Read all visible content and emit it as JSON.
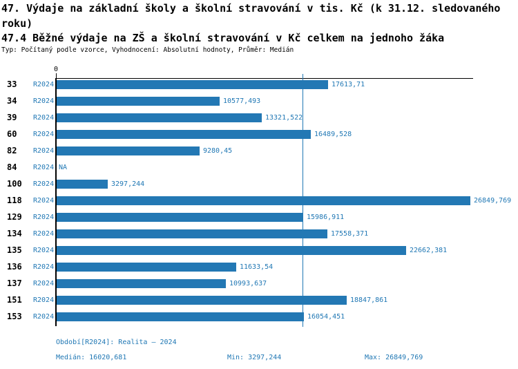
{
  "title": {
    "line1": "47. Výdaje na základní školy a školní stravování v tis. Kč (k 31.12. sledovaného",
    "line2": "roku)",
    "subtitle": "47.4 Běžné výdaje na ZŠ a školní stravování v Kč celkem na jednoho žáka",
    "meta": "Typ: Počítaný podle vzorce, Vyhodnocení: Absolutní hodnoty, Průměr: Medián"
  },
  "chart_data": {
    "type": "bar",
    "orientation": "horizontal",
    "period_label": "R2024",
    "categories": [
      "33",
      "34",
      "39",
      "60",
      "82",
      "84",
      "100",
      "118",
      "129",
      "134",
      "135",
      "136",
      "137",
      "151",
      "153"
    ],
    "values": [
      17613.71,
      10577.493,
      13321.522,
      16489.528,
      9280.45,
      null,
      3297.244,
      26849.769,
      15986.911,
      17558.371,
      22662.381,
      11633.54,
      10993.637,
      18847.861,
      16054.451
    ],
    "value_labels": [
      "17613,71",
      "10577,493",
      "13321,522",
      "16489,528",
      "9280,45",
      "NA",
      "3297,244",
      "26849,769",
      "15986,911",
      "17558,371",
      "22662,381",
      "11633,54",
      "10993,637",
      "18847,861",
      "16054,451"
    ],
    "na_label": "NA",
    "median": 16020.681,
    "min": 3297.244,
    "max": 26849.769,
    "xlim": [
      0,
      27000
    ],
    "axis": {
      "zero_label": "0"
    },
    "legend_position": "none",
    "grid": false
  },
  "footer": {
    "period": "Období[R2024]: Realita – 2024",
    "median": "Medián: 16020,681",
    "min": "Min: 3297,244",
    "max": "Max: 26849,769"
  },
  "colors": {
    "bar": "#2378b4",
    "label_blue": "#1f77b4",
    "median_line": "#1f77b4",
    "axis": "#000000"
  }
}
